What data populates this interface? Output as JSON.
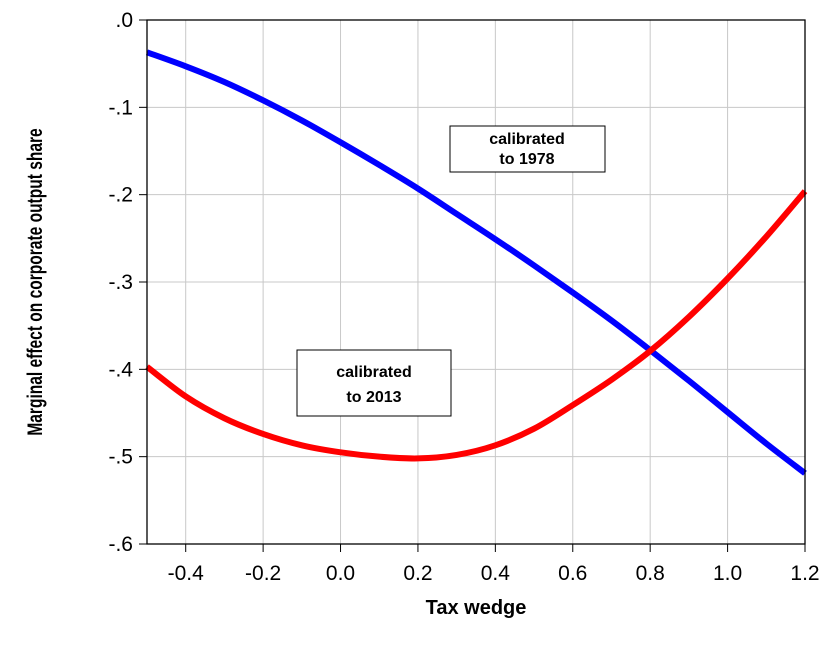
{
  "chart_data": {
    "type": "line",
    "title": "",
    "xlabel": "Tax wedge",
    "ylabel": "Marginal effect on corporate output share",
    "xlim": [
      -0.5,
      1.2
    ],
    "ylim": [
      -0.6,
      0.0
    ],
    "x_ticks": [
      -0.4,
      -0.2,
      0.0,
      0.2,
      0.4,
      0.6,
      0.8,
      1.0,
      1.2
    ],
    "x_tick_labels": [
      "-0.4",
      "-0.2",
      "0.0",
      "0.2",
      "0.4",
      "0.6",
      "0.8",
      "1.0",
      "1.2"
    ],
    "y_ticks": [
      0.0,
      -0.1,
      -0.2,
      -0.3,
      -0.4,
      -0.5,
      -0.6
    ],
    "y_tick_labels": [
      ".0",
      "-.1",
      "-.2",
      "-.3",
      "-.4",
      "-.5",
      "-.6"
    ],
    "grid": true,
    "x": [
      -0.5,
      -0.4,
      -0.3,
      -0.2,
      -0.1,
      0.0,
      0.1,
      0.2,
      0.3,
      0.4,
      0.5,
      0.6,
      0.7,
      0.8,
      0.9,
      1.0,
      1.1,
      1.2
    ],
    "series": [
      {
        "color": "#0000ff",
        "values": [
          -0.037,
          -0.053,
          -0.071,
          -0.092,
          -0.115,
          -0.14,
          -0.166,
          -0.193,
          -0.222,
          -0.251,
          -0.281,
          -0.312,
          -0.344,
          -0.378,
          -0.413,
          -0.449,
          -0.485,
          -0.519
        ]
      },
      {
        "color": "#ff0000",
        "values": [
          -0.397,
          -0.431,
          -0.456,
          -0.474,
          -0.487,
          -0.495,
          -0.5,
          -0.502,
          -0.498,
          -0.487,
          -0.468,
          -0.441,
          -0.412,
          -0.379,
          -0.34,
          -0.296,
          -0.248,
          -0.196
        ]
      }
    ],
    "annotations": [
      {
        "lines": [
          "calibrated",
          "to 1978"
        ]
      },
      {
        "lines": [
          "calibrated",
          "to 2013"
        ]
      }
    ]
  }
}
